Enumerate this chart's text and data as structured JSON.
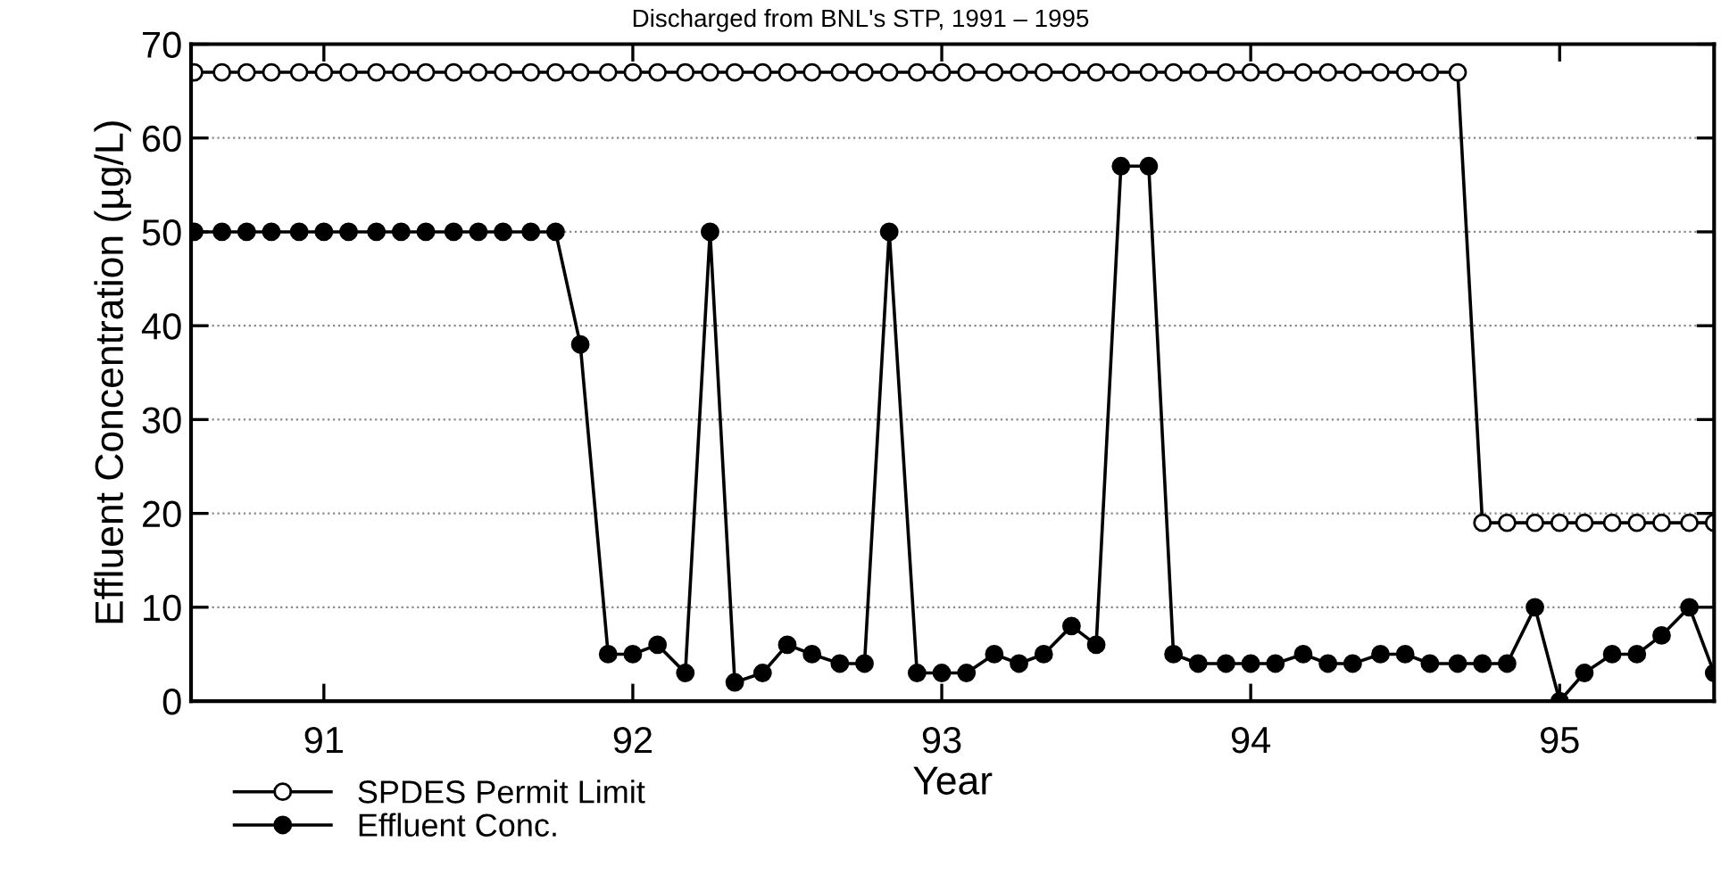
{
  "chart_data": {
    "type": "line",
    "title": "Discharged from BNL's STP, 1991 – 1995",
    "xlabel": "Year",
    "ylabel": "Effluent Concentration (µg/L)",
    "x": [
      90.58,
      90.67,
      90.75,
      90.83,
      90.92,
      91,
      91.08,
      91.17,
      91.25,
      91.33,
      91.42,
      91.5,
      91.58,
      91.67,
      91.75,
      91.83,
      91.92,
      92,
      92.08,
      92.17,
      92.25,
      92.33,
      92.42,
      92.5,
      92.58,
      92.67,
      92.75,
      92.83,
      92.92,
      93,
      93.08,
      93.17,
      93.25,
      93.33,
      93.42,
      93.5,
      93.58,
      93.67,
      93.75,
      93.83,
      93.92,
      94,
      94.08,
      94.17,
      94.25,
      94.33,
      94.42,
      94.5,
      94.58,
      94.67,
      94.75,
      94.83,
      94.92,
      95,
      95.08,
      95.17,
      95.25,
      95.33,
      95.42,
      95.5
    ],
    "series": [
      {
        "name": "SPDES Permit Limit",
        "color": "#000000",
        "values": [
          67,
          67,
          67,
          67,
          67,
          67,
          67,
          67,
          67,
          67,
          67,
          67,
          67,
          67,
          67,
          67,
          67,
          67,
          67,
          67,
          67,
          67,
          67,
          67,
          67,
          67,
          67,
          67,
          67,
          67,
          67,
          67,
          67,
          67,
          67,
          67,
          67,
          67,
          67,
          67,
          67,
          67,
          67,
          67,
          67,
          67,
          67,
          67,
          67,
          67,
          19,
          19,
          19,
          19,
          19,
          19,
          19,
          19,
          19,
          19
        ]
      },
      {
        "name": "Effluent Conc.",
        "color": "#000000",
        "values": [
          50,
          50,
          50,
          50,
          50,
          50,
          50,
          50,
          50,
          50,
          50,
          50,
          50,
          50,
          50,
          38,
          5,
          5,
          6,
          3,
          50,
          2,
          3,
          6,
          5,
          4,
          4,
          50,
          3,
          3,
          3,
          5,
          4,
          5,
          8,
          6,
          57,
          57,
          5,
          4,
          4,
          4,
          4,
          5,
          4,
          4,
          5,
          5,
          4,
          4,
          4,
          4,
          10,
          0,
          3,
          5,
          5,
          7,
          10,
          3
        ]
      }
    ],
    "xlim": [
      90.57,
      95.5
    ],
    "xticks": [
      91,
      92,
      93,
      94,
      95
    ],
    "ylim": [
      0,
      70
    ],
    "yticks": [
      0,
      10,
      20,
      30,
      40,
      50,
      60,
      70
    ],
    "grid": "y",
    "marker": "circle",
    "line_style": "solid",
    "legend": "bottom left"
  }
}
